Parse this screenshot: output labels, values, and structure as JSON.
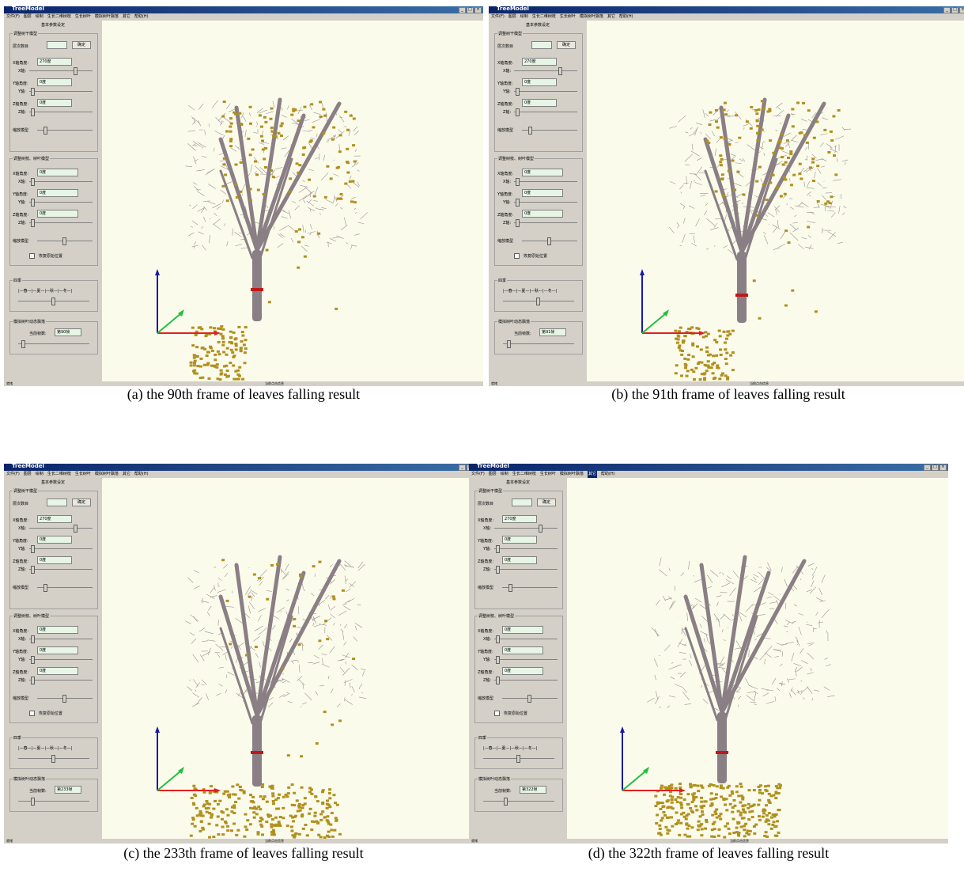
{
  "window": {
    "title": "TreeModel",
    "minimize": "_",
    "maximize": "□",
    "close": "×"
  },
  "menu": [
    "文件(F)",
    "图层",
    "绘制",
    "生长二维树枝",
    "生长树叶",
    "模拟树叶飘落",
    "其它",
    "帮助(H)"
  ],
  "sidebar": {
    "heading": "基本参数设定",
    "group_trunk": "调整树干模型",
    "depth_label": "层次数目",
    "confirm_button": "确定",
    "trunk_x_label": "X轴角度:",
    "trunk_x_value": "270度",
    "trunk_x_axis": "X轴:",
    "trunk_y_label": "Y轴角度:",
    "trunk_y_value": "0度",
    "trunk_y_axis": "Y轴:",
    "trunk_z_label": "Z轴角度:",
    "trunk_z_value": "0度",
    "trunk_z_axis": "Z轴:",
    "scale_label": "缩放模型",
    "group_leaf": "调整树枝、树叶模型",
    "leaf_x_label": "X轴角度:",
    "leaf_x_value": "0度",
    "leaf_x_axis": "X轴:",
    "leaf_y_label": "Y轴角度:",
    "leaf_y_value": "0度",
    "leaf_y_axis": "Y轴:",
    "leaf_z_label": "Z轴角度:",
    "leaf_z_value": "0度",
    "leaf_z_axis": "Z轴:",
    "leaf_scale_label": "缩放模型",
    "reset_label": "恢复原始位置",
    "group_season": "四季",
    "season_scale": "|—春—|—夏—|—秋—|—冬—|",
    "group_sim": "模拟树叶动态飘落",
    "frame_label": "当前帧数:"
  },
  "panels": [
    {
      "frame_value": "第90帧",
      "status_left": "就绪",
      "status_mid": "当前点击信息",
      "caption": "(a) the 90th frame of leaves falling result"
    },
    {
      "frame_value": "第91帧",
      "status_left": "就绪",
      "status_mid": "当前点击信息",
      "caption": "(b) the 91th frame of leaves falling result"
    },
    {
      "frame_value": "第233帧",
      "status_left": "就绪",
      "status_mid": "当前点击信息",
      "caption": "(c) the 233th frame of leaves falling result"
    },
    {
      "frame_value": "第322帧",
      "status_left": "就绪",
      "status_mid": "当前点击信息",
      "caption": "(d) the 322th frame of leaves falling result"
    }
  ],
  "colors": {
    "titlebar": "#0a246a",
    "panel_bg": "#d4d0c8",
    "viewport_bg": "#fbfbec",
    "trunk": "#8a7f84",
    "leaf": "#b0901e",
    "axis_x": "#e02020",
    "axis_y": "#1a1aa8",
    "axis_z": "#20c040"
  }
}
